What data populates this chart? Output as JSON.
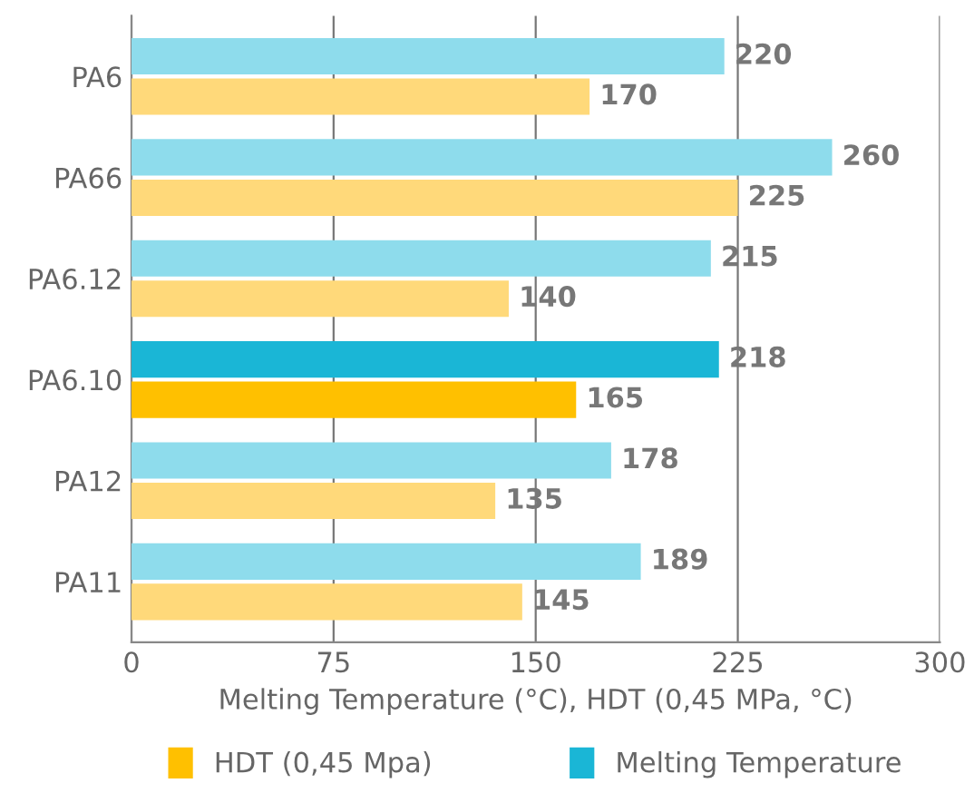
{
  "chart_data": {
    "type": "bar",
    "orientation": "horizontal",
    "xlabel": "Melting Temperature (°C), HDT (0,45 MPa, °C)",
    "categories": [
      "PA6",
      "PA66",
      "PA6.12",
      "PA6.10",
      "PA12",
      "PA11"
    ],
    "series": [
      {
        "name": "HDT (0,45 Mpa)",
        "color": "#ffc000",
        "colors": [
          "#ffd97a",
          "#ffd97a",
          "#ffd97a",
          "#ffc000",
          "#ffd97a",
          "#ffd97a"
        ],
        "values": [
          170,
          225,
          140,
          165,
          135,
          145
        ]
      },
      {
        "name": "Melting Temperature",
        "color": "#1ab6d6",
        "colors": [
          "#8edcec",
          "#8edcec",
          "#8edcec",
          "#1ab6d6",
          "#8edcec",
          "#8edcec"
        ],
        "values": [
          220,
          260,
          215,
          218,
          178,
          189
        ]
      }
    ],
    "xlim": [
      0,
      300
    ],
    "xticks": [
      0,
      75,
      150,
      225,
      300
    ],
    "grid": "x",
    "data_labels": true,
    "legend": "bottom"
  }
}
